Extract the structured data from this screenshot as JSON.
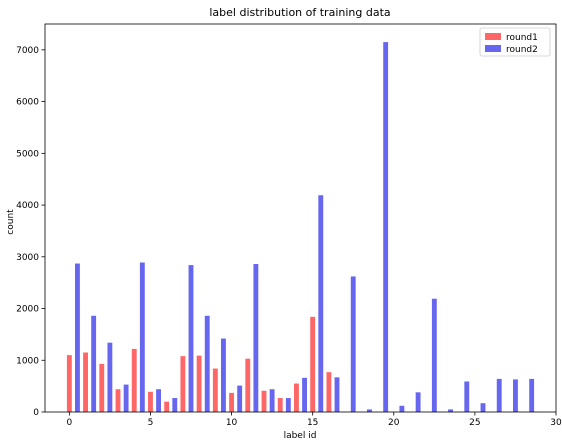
{
  "chart_data": {
    "type": "bar",
    "title": "label distribution of training data",
    "xlabel": "label id",
    "ylabel": "count",
    "xlim": [
      -1.5,
      30
    ],
    "ylim": [
      0,
      7500
    ],
    "xticks": [
      0,
      5,
      10,
      15,
      20,
      25,
      30
    ],
    "yticks": [
      0,
      1000,
      2000,
      3000,
      4000,
      5000,
      6000,
      7000
    ],
    "legend_position": "top-right",
    "bar_width": 0.3,
    "series": [
      {
        "name": "round1",
        "color": "#ff6666",
        "x": [
          0,
          1,
          2,
          3,
          4,
          5,
          6,
          7,
          8,
          9,
          10,
          11,
          12,
          13,
          14,
          15,
          16
        ],
        "values": [
          1100,
          1150,
          930,
          440,
          1220,
          390,
          200,
          1080,
          1090,
          840,
          370,
          1030,
          410,
          270,
          550,
          1840,
          770
        ]
      },
      {
        "name": "round2",
        "color": "#6666ee",
        "x": [
          0.5,
          1.5,
          2.5,
          3.5,
          4.5,
          5.5,
          6.5,
          7.5,
          8.5,
          9.5,
          10.5,
          11.5,
          12.5,
          13.5,
          14.5,
          15.5,
          16.5,
          17.5,
          18.5,
          19.5,
          20.5,
          21.5,
          22.5,
          23.5,
          24.5,
          25.5,
          26.5,
          27.5,
          28.5
        ],
        "values": [
          2870,
          1860,
          1340,
          530,
          2890,
          440,
          270,
          2840,
          1860,
          1420,
          510,
          2860,
          440,
          270,
          660,
          4190,
          670,
          2620,
          50,
          7150,
          120,
          380,
          2190,
          50,
          590,
          170,
          640,
          630,
          640
        ]
      }
    ]
  }
}
